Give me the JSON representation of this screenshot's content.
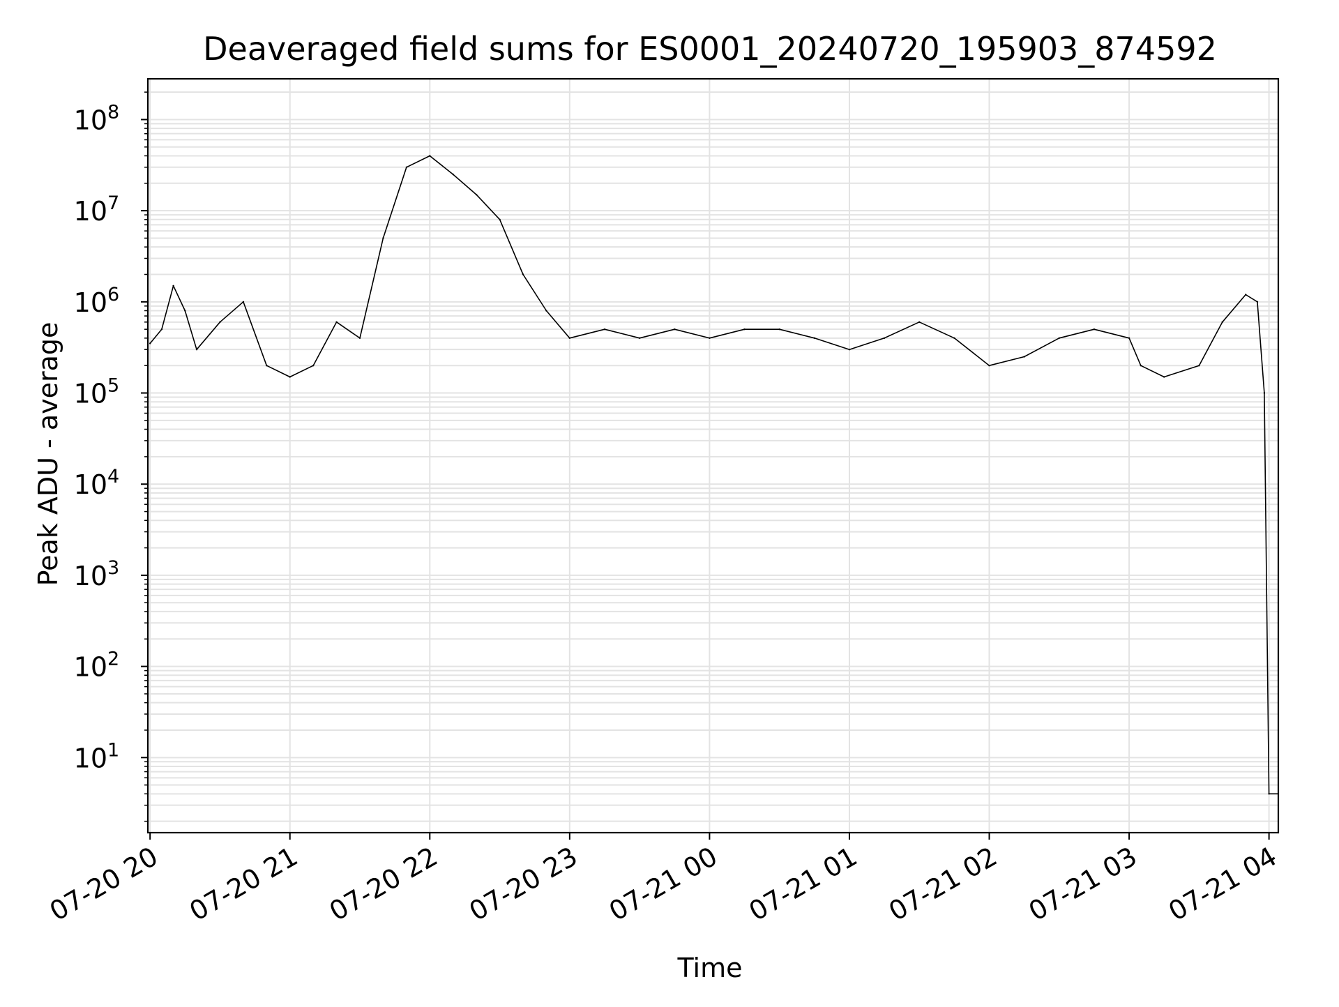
{
  "chart_data": {
    "type": "line",
    "title": "Deaveraged field sums for ES0001_20240720_195903_874592",
    "xlabel": "Time",
    "ylabel": "Peak ADU - average",
    "yscale": "log",
    "ylim": [
      1.5,
      280000000
    ],
    "xlim": [
      "2024-07-20 19:59:03",
      "2024-07-21 04:04:00"
    ],
    "grid": true,
    "line_color": "#000000",
    "x_ticks": [
      {
        "t": "2024-07-20 20:00",
        "label": "07-20 20"
      },
      {
        "t": "2024-07-20 21:00",
        "label": "07-20 21"
      },
      {
        "t": "2024-07-20 22:00",
        "label": "07-20 22"
      },
      {
        "t": "2024-07-20 23:00",
        "label": "07-20 23"
      },
      {
        "t": "2024-07-21 00:00",
        "label": "07-21 00"
      },
      {
        "t": "2024-07-21 01:00",
        "label": "07-21 01"
      },
      {
        "t": "2024-07-21 02:00",
        "label": "07-21 02"
      },
      {
        "t": "2024-07-21 03:00",
        "label": "07-21 03"
      },
      {
        "t": "2024-07-21 04:00",
        "label": "07-21 04"
      }
    ],
    "y_ticks": [
      {
        "value": 10,
        "base": "10",
        "exp": "1"
      },
      {
        "value": 100,
        "base": "10",
        "exp": "2"
      },
      {
        "value": 1000,
        "base": "10",
        "exp": "3"
      },
      {
        "value": 10000,
        "base": "10",
        "exp": "4"
      },
      {
        "value": 100000,
        "base": "10",
        "exp": "5"
      },
      {
        "value": 1000000,
        "base": "10",
        "exp": "6"
      },
      {
        "value": 10000000,
        "base": "10",
        "exp": "7"
      },
      {
        "value": 100000000,
        "base": "10",
        "exp": "8"
      }
    ],
    "series": [
      {
        "points": [
          [
            "2024-07-20 20:00",
            350000
          ],
          [
            "2024-07-20 20:05",
            500000
          ],
          [
            "2024-07-20 20:10",
            1500000
          ],
          [
            "2024-07-20 20:15",
            800000
          ],
          [
            "2024-07-20 20:20",
            300000
          ],
          [
            "2024-07-20 20:30",
            600000
          ],
          [
            "2024-07-20 20:40",
            1000000
          ],
          [
            "2024-07-20 20:50",
            200000
          ],
          [
            "2024-07-20 21:00",
            150000
          ],
          [
            "2024-07-20 21:10",
            200000
          ],
          [
            "2024-07-20 21:20",
            600000
          ],
          [
            "2024-07-20 21:30",
            400000
          ],
          [
            "2024-07-20 21:40",
            5000000
          ],
          [
            "2024-07-20 21:50",
            30000000
          ],
          [
            "2024-07-20 22:00",
            40000000
          ],
          [
            "2024-07-20 22:10",
            25000000
          ],
          [
            "2024-07-20 22:20",
            15000000
          ],
          [
            "2024-07-20 22:30",
            8000000
          ],
          [
            "2024-07-20 22:40",
            2000000
          ],
          [
            "2024-07-20 22:50",
            800000
          ],
          [
            "2024-07-20 23:00",
            400000
          ],
          [
            "2024-07-20 23:15",
            500000
          ],
          [
            "2024-07-20 23:30",
            400000
          ],
          [
            "2024-07-20 23:45",
            500000
          ],
          [
            "2024-07-21 00:00",
            400000
          ],
          [
            "2024-07-21 00:15",
            500000
          ],
          [
            "2024-07-21 00:30",
            500000
          ],
          [
            "2024-07-21 00:45",
            400000
          ],
          [
            "2024-07-21 01:00",
            300000
          ],
          [
            "2024-07-21 01:15",
            400000
          ],
          [
            "2024-07-21 01:30",
            600000
          ],
          [
            "2024-07-21 01:45",
            400000
          ],
          [
            "2024-07-21 02:00",
            200000
          ],
          [
            "2024-07-21 02:15",
            250000
          ],
          [
            "2024-07-21 02:30",
            400000
          ],
          [
            "2024-07-21 02:45",
            500000
          ],
          [
            "2024-07-21 03:00",
            400000
          ],
          [
            "2024-07-21 03:05",
            200000
          ],
          [
            "2024-07-21 03:15",
            150000
          ],
          [
            "2024-07-21 03:30",
            200000
          ],
          [
            "2024-07-21 03:40",
            600000
          ],
          [
            "2024-07-21 03:50",
            1200000
          ],
          [
            "2024-07-21 03:55",
            1000000
          ],
          [
            "2024-07-21 03:58",
            100000
          ],
          [
            "2024-07-21 04:00",
            4
          ],
          [
            "2024-07-21 04:04",
            4
          ]
        ]
      }
    ]
  }
}
